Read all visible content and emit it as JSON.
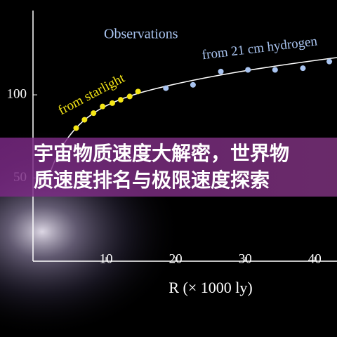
{
  "chart_data": {
    "type": "scatter",
    "annotations": [
      "Observations",
      "from 21 cm hydrogen",
      "from starlight"
    ],
    "x_label": "R (× 1000 ly)",
    "xlim": [
      0,
      43
    ],
    "xticks": [
      10,
      20,
      30,
      40
    ],
    "ylim": [
      0,
      157
    ],
    "yticks": [
      50,
      100
    ],
    "grid": false,
    "series": [
      {
        "color": "#f5e616",
        "x": [
          5.7,
          6.9,
          8.2,
          9.5,
          10.9,
          12.1,
          13.4,
          14.6
        ],
        "values": [
          80,
          85,
          89,
          93,
          95,
          97,
          99,
          102
        ]
      },
      {
        "color": "#a9c4f0",
        "x": [
          18.6,
          22.5,
          26.5,
          30.4,
          34.3,
          38.3,
          42.1
        ],
        "values": [
          104,
          106,
          114,
          115,
          115,
          116,
          120
        ]
      }
    ]
  },
  "banner": {
    "title": "宇宙物质速度大解密，世界物质速度排名与极限速度探索"
  }
}
